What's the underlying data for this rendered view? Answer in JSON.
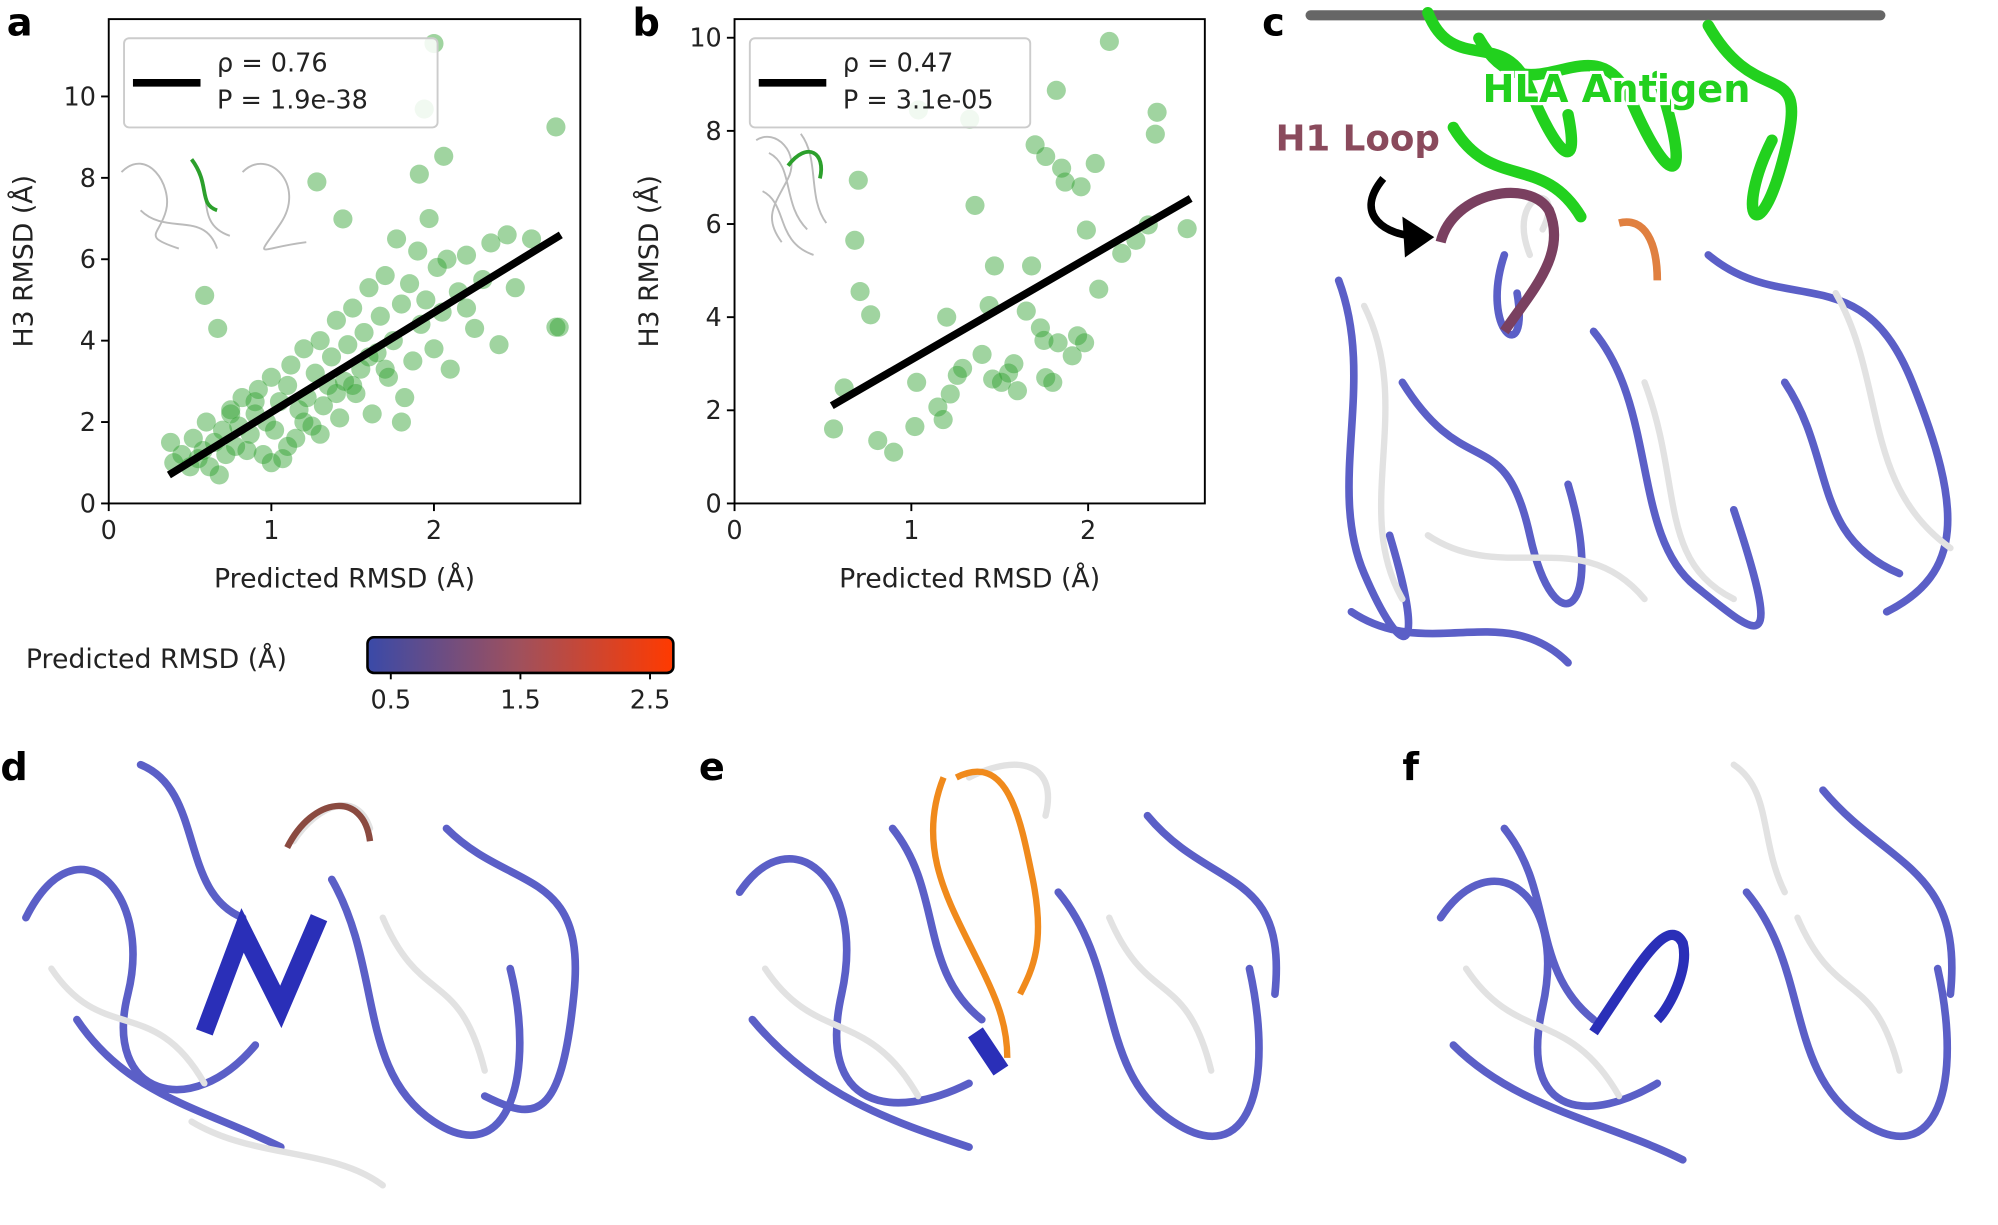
{
  "chart_data": [
    {
      "type": "scatter",
      "panel": "a",
      "x_label": "Predicted RMSD (Å)",
      "y_label": "H3 RMSD (Å)",
      "xlim": [
        0,
        2.9
      ],
      "ylim": [
        0,
        11.9
      ],
      "xticks": [
        0,
        1,
        2
      ],
      "yticks": [
        0,
        2,
        4,
        6,
        8,
        10
      ],
      "color": "#2ca02c",
      "x": [
        0.38,
        0.4,
        0.45,
        0.5,
        0.52,
        0.55,
        0.58,
        0.6,
        0.62,
        0.65,
        0.68,
        0.7,
        0.72,
        0.75,
        0.78,
        0.8,
        0.82,
        0.85,
        0.87,
        0.9,
        0.92,
        0.95,
        0.97,
        1.0,
        1.02,
        1.05,
        1.07,
        1.1,
        1.12,
        1.15,
        1.17,
        1.2,
        1.22,
        1.25,
        1.27,
        1.3,
        1.32,
        1.35,
        1.37,
        1.4,
        1.42,
        1.45,
        1.47,
        1.5,
        1.52,
        1.55,
        1.57,
        1.6,
        1.62,
        1.65,
        1.67,
        1.7,
        1.72,
        1.75,
        1.77,
        1.8,
        1.82,
        1.85,
        1.87,
        1.9,
        1.92,
        1.95,
        1.97,
        2.0,
        2.02,
        2.05,
        2.08,
        2.1,
        2.15,
        2.2,
        2.25,
        2.3,
        2.35,
        2.4,
        2.45,
        2.5,
        2.6,
        2.75,
        0.59,
        0.67,
        1.28,
        1.44,
        1.91,
        1.94,
        2.0,
        2.06,
        2.75,
        2.77,
        1.0,
        1.1,
        1.2,
        1.3,
        1.5,
        1.6,
        1.8,
        0.9,
        1.4,
        1.7,
        2.2,
        0.75
      ],
      "values": [
        1.5,
        1.0,
        1.2,
        0.9,
        1.6,
        1.1,
        1.3,
        2.0,
        0.9,
        1.5,
        0.7,
        1.8,
        1.2,
        2.3,
        1.4,
        1.9,
        2.6,
        1.3,
        1.7,
        2.2,
        2.8,
        1.2,
        2.0,
        3.1,
        1.8,
        2.5,
        1.1,
        2.9,
        3.4,
        1.6,
        2.3,
        3.8,
        2.6,
        1.9,
        3.2,
        4.0,
        2.4,
        2.9,
        3.6,
        4.5,
        2.1,
        3.0,
        3.9,
        4.8,
        2.7,
        3.3,
        4.2,
        5.3,
        2.2,
        3.7,
        4.6,
        5.6,
        3.1,
        4.0,
        6.5,
        4.9,
        2.6,
        5.4,
        3.5,
        6.2,
        4.4,
        5.0,
        7.0,
        3.8,
        5.8,
        4.7,
        6.0,
        3.3,
        5.2,
        6.1,
        4.3,
        5.5,
        6.4,
        3.9,
        6.6,
        5.3,
        6.5,
        4.33,
        5.11,
        4.3,
        7.9,
        6.99,
        8.09,
        9.69,
        11.3,
        8.53,
        9.25,
        4.33,
        1.0,
        1.4,
        2.0,
        1.7,
        2.9,
        3.6,
        2.0,
        2.5,
        2.7,
        3.3,
        4.8,
        2.2
      ],
      "fit": {
        "x": [
          0.37,
          2.78
        ],
        "values": [
          0.7,
          6.6
        ],
        "color": "#000000",
        "legend": [
          "ρ = 0.76",
          "P = 1.9e-38"
        ]
      }
    },
    {
      "type": "scatter",
      "panel": "b",
      "x_label": "Predicted RMSD (Å)",
      "y_label": "H3 RMSD (Å)",
      "xlim": [
        0,
        2.66
      ],
      "ylim": [
        0,
        10.4
      ],
      "xticks": [
        0,
        1,
        2
      ],
      "yticks": [
        0,
        2,
        4,
        6,
        8,
        10
      ],
      "color": "#2ca02c",
      "x": [
        0.56,
        0.62,
        0.68,
        0.7,
        0.71,
        0.77,
        0.81,
        0.9,
        1.02,
        1.03,
        1.04,
        1.15,
        1.18,
        1.2,
        1.22,
        1.26,
        1.29,
        1.33,
        1.36,
        1.4,
        1.44,
        1.46,
        1.47,
        1.51,
        1.55,
        1.58,
        1.6,
        1.65,
        1.68,
        1.7,
        1.73,
        1.75,
        1.76,
        1.76,
        1.8,
        1.82,
        1.83,
        1.85,
        1.87,
        1.91,
        1.94,
        1.96,
        1.98,
        1.99,
        2.04,
        2.06,
        2.12,
        2.19,
        2.27,
        2.34,
        2.38,
        2.39,
        2.56
      ],
      "values": [
        1.6,
        2.48,
        5.65,
        6.94,
        4.55,
        4.05,
        1.35,
        1.1,
        1.65,
        2.6,
        8.45,
        2.07,
        1.8,
        4.0,
        2.35,
        2.75,
        2.9,
        8.25,
        6.4,
        3.2,
        4.25,
        2.67,
        5.1,
        2.6,
        2.8,
        3.0,
        2.42,
        4.13,
        5.1,
        7.7,
        3.77,
        3.5,
        7.45,
        2.7,
        2.6,
        8.87,
        3.45,
        7.2,
        6.9,
        3.17,
        3.6,
        6.8,
        3.45,
        5.87,
        7.3,
        4.6,
        9.92,
        5.37,
        5.65,
        5.98,
        7.93,
        8.4,
        5.9
      ],
      "fit": {
        "x": [
          0.55,
          2.58
        ],
        "values": [
          2.1,
          6.55
        ],
        "color": "#000000",
        "legend": [
          "ρ = 0.47",
          "P = 3.1e-05"
        ]
      }
    }
  ],
  "colorbar": {
    "label": "Predicted RMSD (Å)",
    "lim": [
      0.32,
      2.68
    ],
    "ticks": [
      0.5,
      1.5,
      2.5
    ],
    "colors": [
      "#3a4aa8",
      "#a0505c",
      "#ff3a00"
    ]
  },
  "panels": [
    "c",
    "d",
    "e",
    "f"
  ],
  "annotations": {
    "antigen": "HLA Antigen",
    "loop": "H1 Loop"
  }
}
